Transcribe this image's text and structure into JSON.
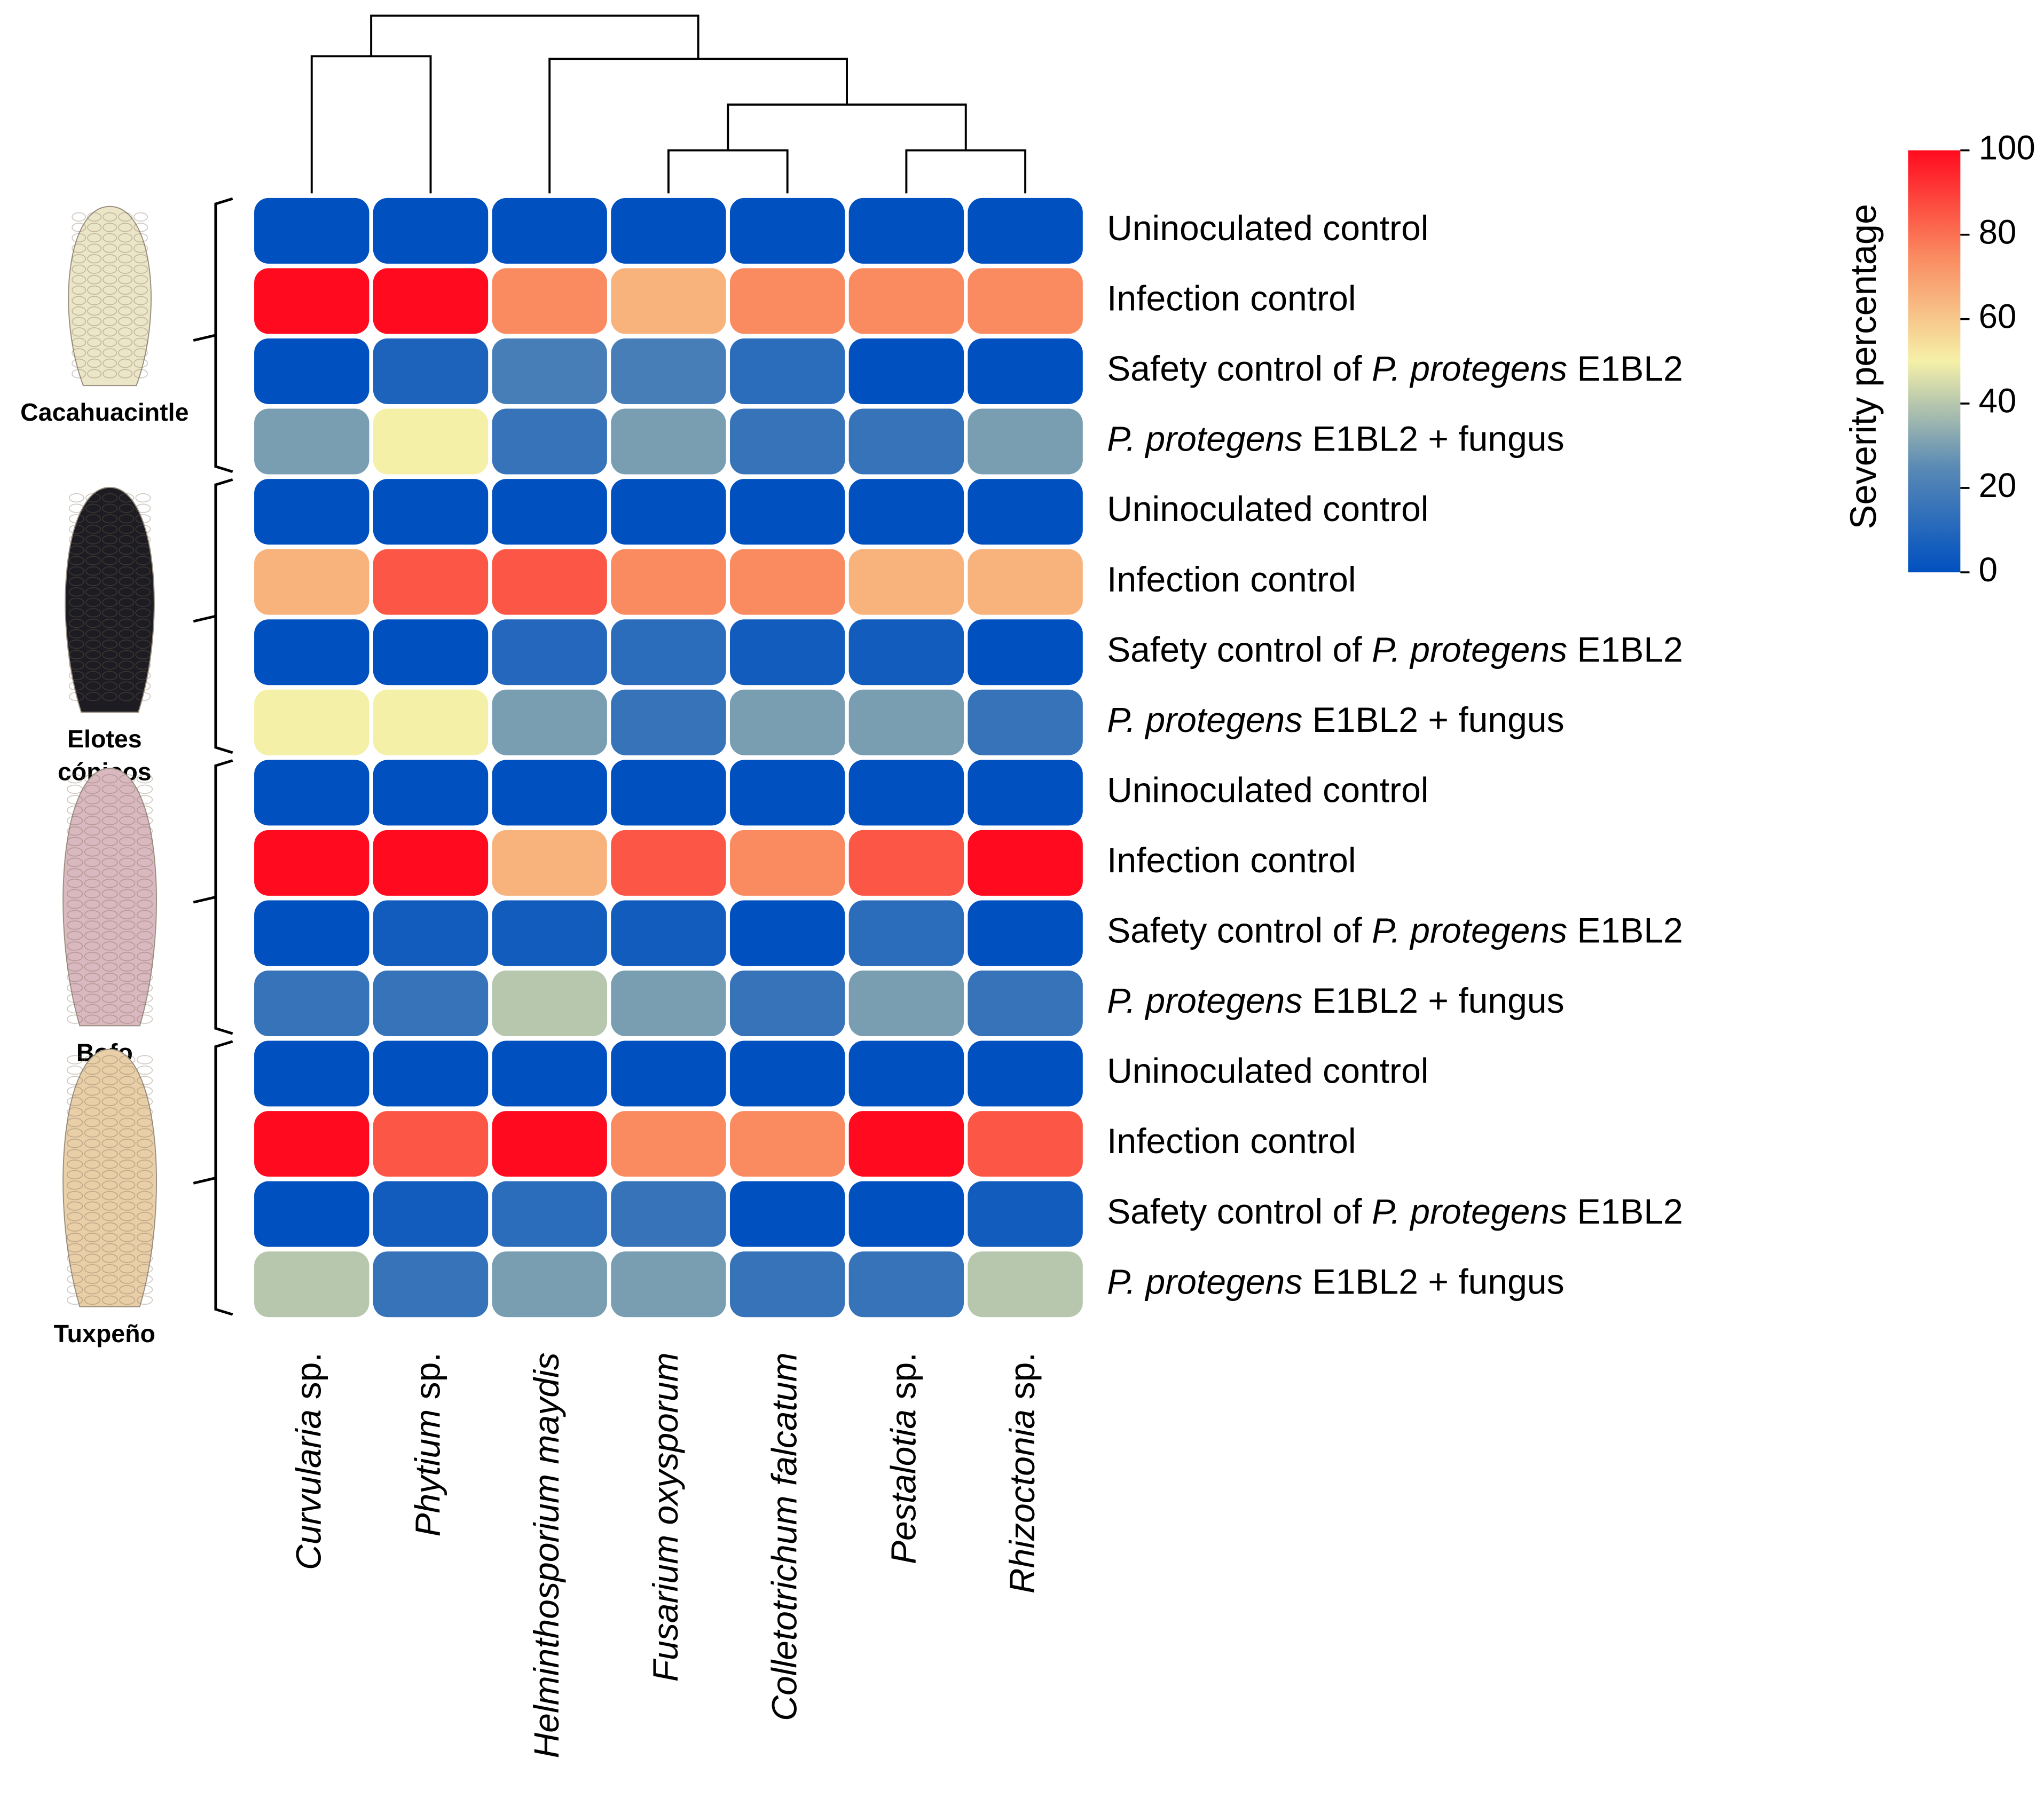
{
  "chart_data": {
    "type": "heatmap",
    "x_categories": [
      [
        {
          "text": "Curvularia",
          "italic": true
        },
        {
          "text": " sp."
        }
      ],
      [
        {
          "text": "Phytium",
          "italic": true
        },
        {
          "text": " sp."
        }
      ],
      [
        {
          "text": "Helminthosporium maydis",
          "italic": true
        }
      ],
      [
        {
          "text": "Fusarium oxysporum",
          "italic": true
        }
      ],
      [
        {
          "text": "Colletotrichum falcatum",
          "italic": true
        }
      ],
      [
        {
          "text": "Pestalotia",
          "italic": true
        },
        {
          "text": " sp."
        }
      ],
      [
        {
          "text": "Rhizoctonia",
          "italic": true
        },
        {
          "text": " sp."
        }
      ]
    ],
    "y_categories": [
      [
        {
          "text": "Uninoculated control"
        }
      ],
      [
        {
          "text": "Infection control"
        }
      ],
      [
        {
          "text": "Safety control of "
        },
        {
          "text": "P. protegens",
          "italic": true
        },
        {
          "text": " E1BL2"
        }
      ],
      [
        {
          "text": "P. protegens",
          "italic": true
        },
        {
          "text": " E1BL2 + fungus"
        }
      ],
      [
        {
          "text": "Uninoculated control"
        }
      ],
      [
        {
          "text": "Infection control"
        }
      ],
      [
        {
          "text": "Safety control of "
        },
        {
          "text": "P. protegens",
          "italic": true
        },
        {
          "text": " E1BL2"
        }
      ],
      [
        {
          "text": "P. protegens",
          "italic": true
        },
        {
          "text": " E1BL2 + fungus"
        }
      ],
      [
        {
          "text": "Uninoculated control"
        }
      ],
      [
        {
          "text": "Infection control"
        }
      ],
      [
        {
          "text": "Safety control of "
        },
        {
          "text": "P. protegens",
          "italic": true
        },
        {
          "text": " E1BL2"
        }
      ],
      [
        {
          "text": "P. protegens",
          "italic": true
        },
        {
          "text": " E1BL2 + fungus"
        }
      ],
      [
        {
          "text": "Uninoculated control"
        }
      ],
      [
        {
          "text": "Infection control"
        }
      ],
      [
        {
          "text": "Safety control of "
        },
        {
          "text": "P. protegens",
          "italic": true
        },
        {
          "text": " E1BL2"
        }
      ],
      [
        {
          "text": "P. protegens",
          "italic": true
        },
        {
          "text": " E1BL2 + fungus"
        }
      ]
    ],
    "groups": [
      {
        "lines": [
          "Cacahuacintle"
        ],
        "rows": [
          0,
          3
        ],
        "corn": "#ece6c8"
      },
      {
        "lines": [
          "Elotes",
          "cónicos"
        ],
        "rows": [
          4,
          7
        ],
        "corn": "#1c1c22"
      },
      {
        "lines": [
          "Bofo"
        ],
        "rows": [
          8,
          11
        ],
        "corn": "#d9b8c0"
      },
      {
        "lines": [
          "Tuxpeño"
        ],
        "rows": [
          12,
          15
        ],
        "corn": "#e9cfa8"
      }
    ],
    "values": [
      [
        0,
        0,
        0,
        0,
        0,
        0,
        0
      ],
      [
        100,
        100,
        75,
        65,
        75,
        75,
        75
      ],
      [
        0,
        8,
        20,
        20,
        12,
        0,
        0
      ],
      [
        30,
        50,
        15,
        30,
        15,
        15,
        30
      ],
      [
        0,
        0,
        0,
        0,
        0,
        0,
        0
      ],
      [
        65,
        85,
        85,
        75,
        75,
        65,
        65
      ],
      [
        0,
        0,
        10,
        12,
        5,
        5,
        0
      ],
      [
        50,
        50,
        30,
        15,
        30,
        30,
        15
      ],
      [
        0,
        0,
        0,
        0,
        0,
        0,
        0
      ],
      [
        100,
        100,
        65,
        85,
        75,
        85,
        100
      ],
      [
        0,
        5,
        5,
        5,
        0,
        12,
        0
      ],
      [
        15,
        15,
        40,
        30,
        15,
        30,
        15
      ],
      [
        0,
        0,
        0,
        0,
        0,
        0,
        0
      ],
      [
        100,
        85,
        100,
        75,
        75,
        100,
        85
      ],
      [
        0,
        5,
        12,
        15,
        0,
        0,
        5
      ],
      [
        40,
        15,
        30,
        30,
        15,
        15,
        40
      ]
    ],
    "colorbar": {
      "label": "Severity percentage",
      "lim": [
        0,
        100
      ],
      "ticks": [
        0,
        20,
        40,
        60,
        80,
        100
      ],
      "colors": [
        "#0050c0",
        "#5a8ab5",
        "#f5f0a8",
        "#fa8a60",
        "#ff0a1e"
      ]
    },
    "dendrogram": {
      "ylim": [
        0,
        136
      ],
      "merges": [
        [
          3,
          4,
          33
        ],
        [
          5,
          6,
          33
        ],
        [
          7,
          8,
          68
        ],
        [
          2,
          9,
          103
        ],
        [
          0,
          1,
          105
        ],
        [
          11,
          10,
          136
        ]
      ]
    }
  }
}
